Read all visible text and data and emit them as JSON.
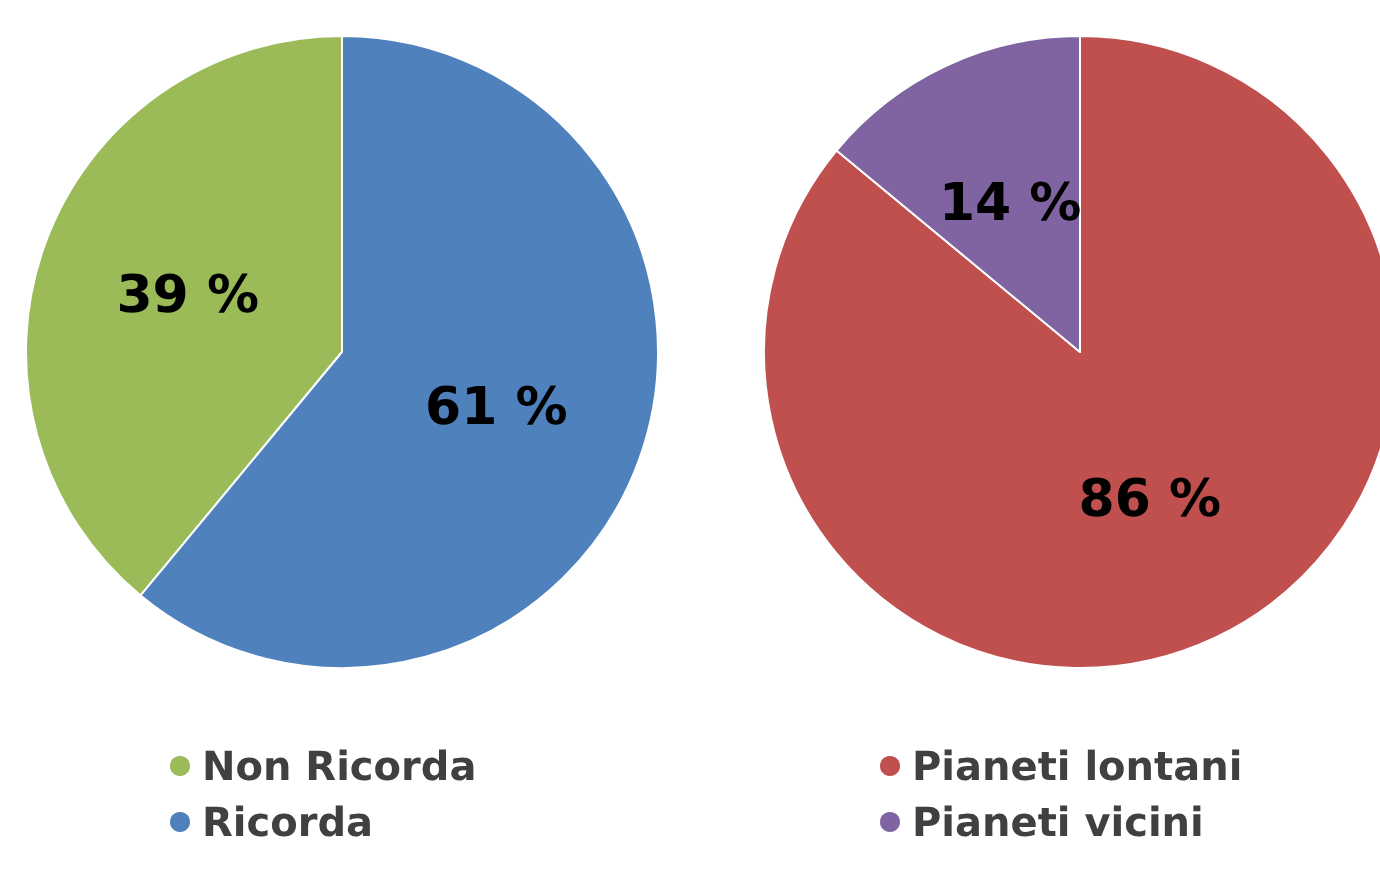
{
  "chart_data": [
    {
      "type": "pie",
      "categories": [
        "Non Ricorda",
        "Ricorda"
      ],
      "values": [
        39,
        61
      ],
      "colors": [
        "#9bbb59",
        "#4f81bd"
      ],
      "value_labels": [
        "39 %",
        "61 %"
      ],
      "legend": "bottom"
    },
    {
      "type": "pie",
      "categories": [
        "Pianeti lontani",
        "Pianeti vicini"
      ],
      "values": [
        86,
        14
      ],
      "colors": [
        "#c0504d",
        "#8064a2"
      ],
      "value_labels": [
        "86 %",
        "14 %"
      ],
      "legend": "bottom"
    }
  ]
}
